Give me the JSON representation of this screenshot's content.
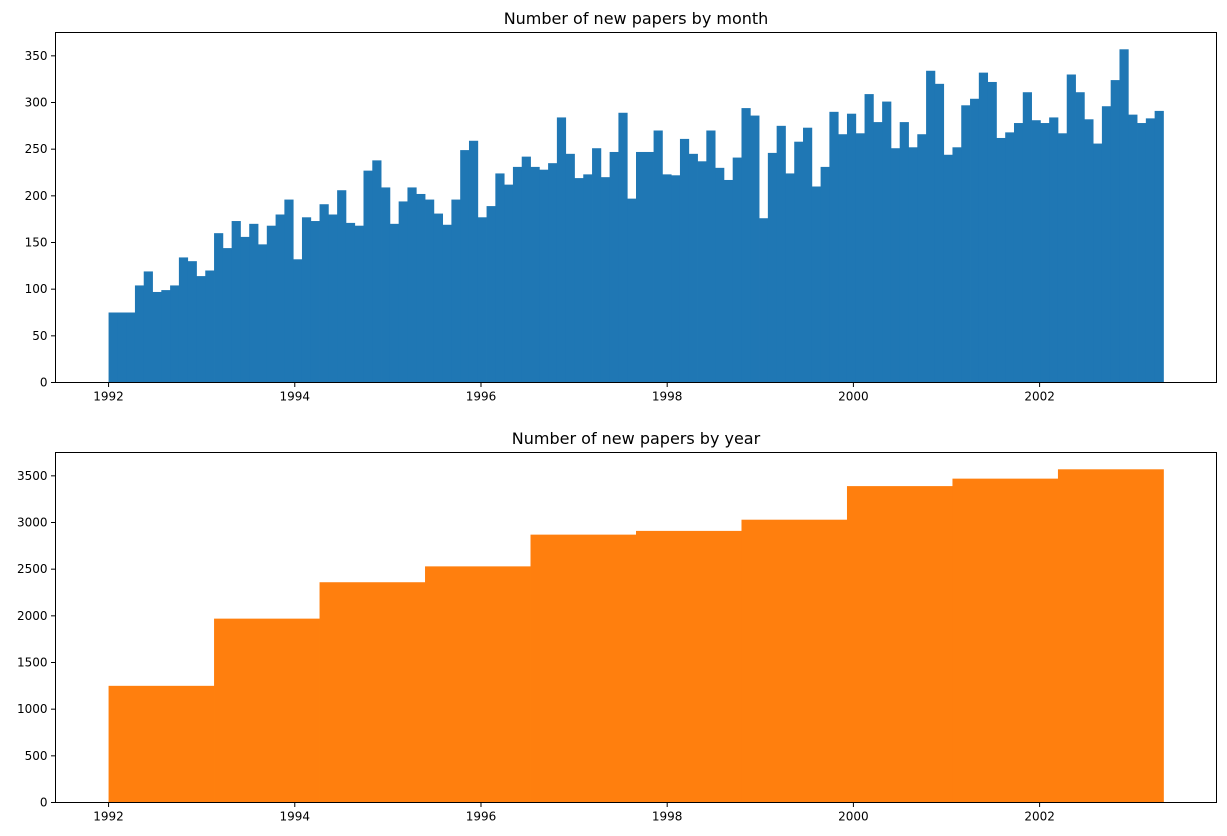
{
  "chart_data": [
    {
      "type": "bar",
      "title": "Number of new papers by month",
      "xlabel": "",
      "ylabel": "",
      "x_start": 1992.0,
      "x_end": 2003.33,
      "xlim": [
        1991.43,
        2003.9
      ],
      "ylim": [
        0,
        375
      ],
      "xticks": [
        1992,
        1994,
        1996,
        1998,
        2000,
        2002
      ],
      "xtick_labels": [
        "1992",
        "1994",
        "1996",
        "1998",
        "2000",
        "2002"
      ],
      "yticks": [
        0,
        50,
        100,
        150,
        200,
        250,
        300,
        350
      ],
      "ytick_labels": [
        "0",
        "50",
        "100",
        "150",
        "200",
        "250",
        "300",
        "350"
      ],
      "color": "#1f77b4",
      "grid": false,
      "values": [
        75,
        75,
        75,
        104,
        119,
        97,
        99,
        104,
        134,
        130,
        114,
        120,
        160,
        144,
        173,
        156,
        170,
        148,
        168,
        180,
        196,
        132,
        177,
        173,
        191,
        180,
        206,
        171,
        168,
        227,
        238,
        209,
        170,
        194,
        209,
        202,
        196,
        181,
        169,
        196,
        249,
        259,
        177,
        189,
        224,
        212,
        231,
        242,
        231,
        228,
        235,
        284,
        245,
        219,
        223,
        251,
        220,
        247,
        289,
        197,
        247,
        247,
        270,
        223,
        222,
        261,
        245,
        237,
        270,
        230,
        217,
        241,
        294,
        286,
        176,
        246,
        275,
        224,
        258,
        273,
        210,
        231,
        290,
        266,
        288,
        267,
        309,
        279,
        301,
        251,
        279,
        252,
        266,
        334,
        320,
        244,
        252,
        297,
        304,
        332,
        322,
        262,
        268,
        278,
        311,
        281,
        278,
        284,
        267,
        330,
        311,
        282,
        256,
        296,
        324,
        357,
        287,
        278,
        283,
        291
      ]
    },
    {
      "type": "bar",
      "title": "Number of new papers by year",
      "xlabel": "",
      "ylabel": "",
      "x_start": 1992.0,
      "x_end": 2003.33,
      "xlim": [
        1991.43,
        2003.9
      ],
      "ylim": [
        0,
        3750
      ],
      "xticks": [
        1992,
        1994,
        1996,
        1998,
        2000,
        2002
      ],
      "xtick_labels": [
        "1992",
        "1994",
        "1996",
        "1998",
        "2000",
        "2002"
      ],
      "yticks": [
        0,
        500,
        1000,
        1500,
        2000,
        2500,
        3000,
        3500
      ],
      "ytick_labels": [
        "0",
        "500",
        "1000",
        "1500",
        "2000",
        "2500",
        "3000",
        "3500"
      ],
      "color": "#ff7f0e",
      "grid": false,
      "values": [
        1250,
        1970,
        2360,
        2530,
        2870,
        2910,
        3030,
        3390,
        3470,
        3570
      ]
    }
  ]
}
